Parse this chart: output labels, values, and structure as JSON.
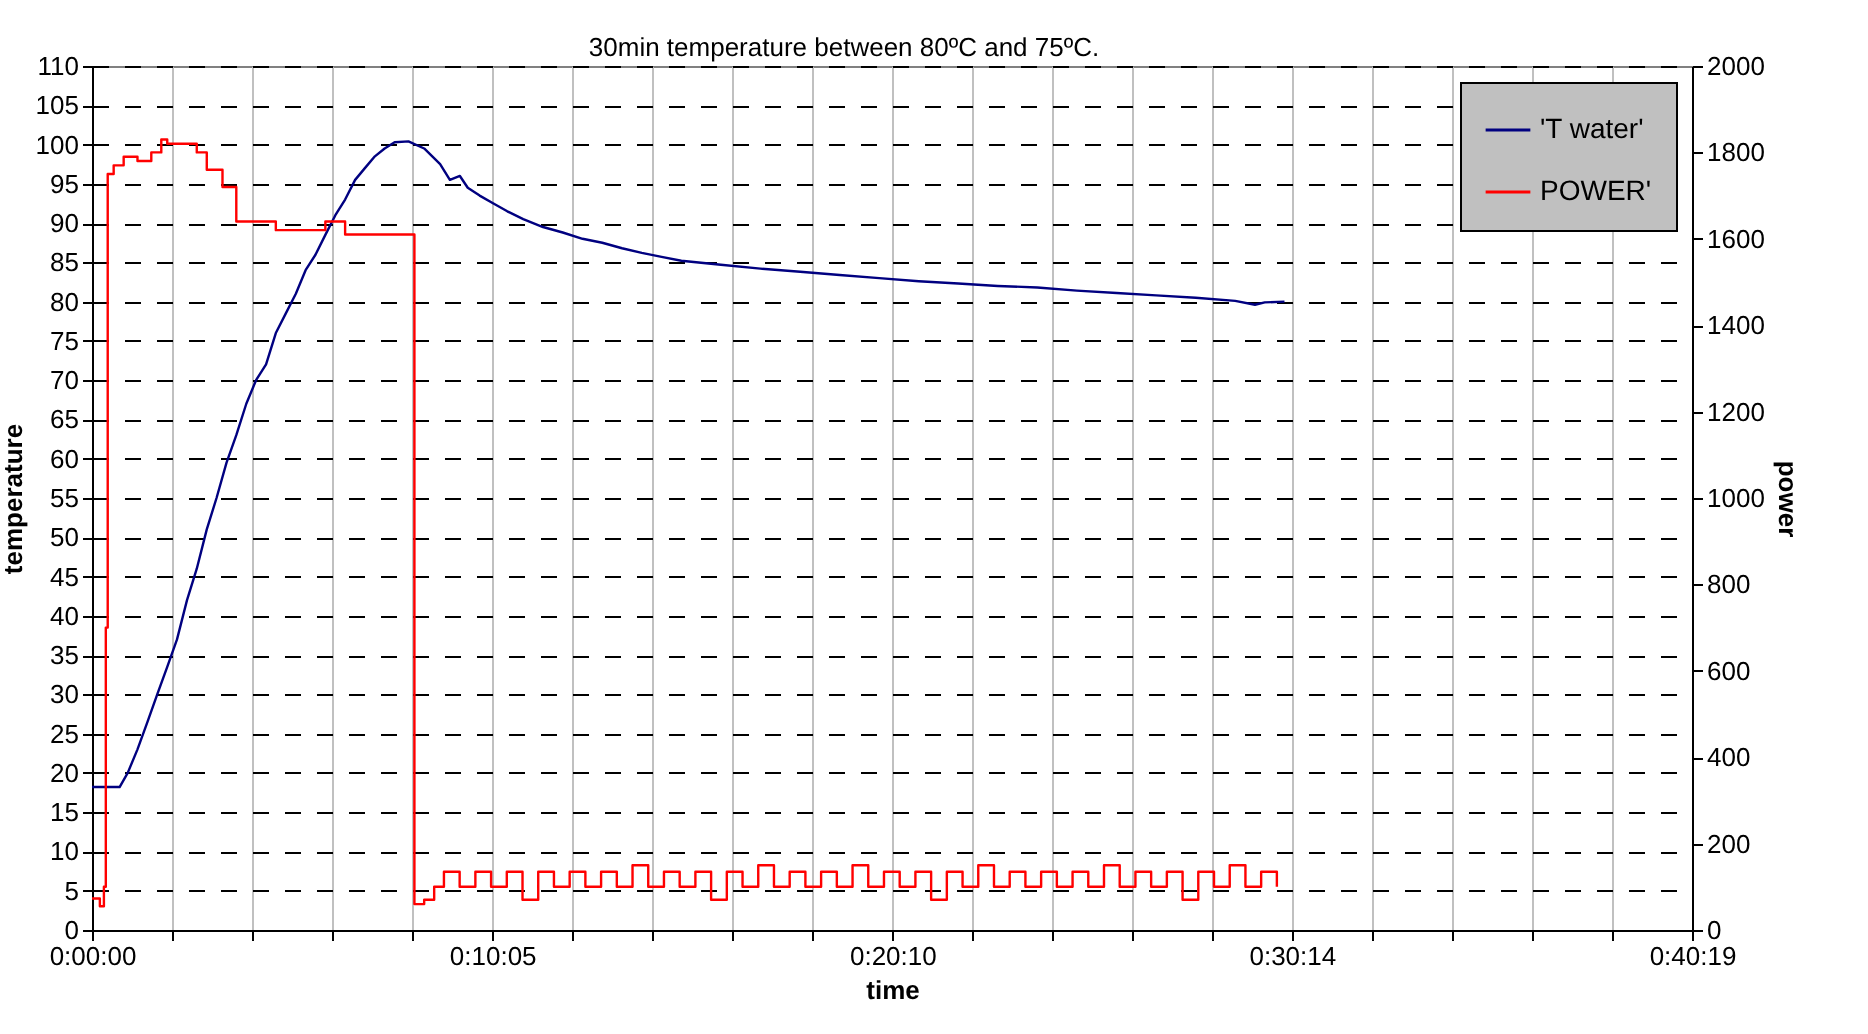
{
  "chart_data": {
    "type": "line",
    "xlabel": "time",
    "ylabel": "temperature",
    "y2label": "power",
    "annotations": [
      "30min temperature between 80ºC and 75ºC."
    ],
    "xlim": [
      0,
      0.67194
    ],
    "ylim": [
      0,
      110
    ],
    "y2lim": [
      0,
      2000
    ],
    "xticks": [
      {
        "value": 0,
        "label": "0:00:00"
      },
      {
        "value": 0.03361,
        "label": null
      },
      {
        "value": 0.06722,
        "label": null
      },
      {
        "value": 0.10083,
        "label": null
      },
      {
        "value": 0.13444,
        "label": null
      },
      {
        "value": 0.16806,
        "label": "0:10:05"
      },
      {
        "value": 0.20167,
        "label": null
      },
      {
        "value": 0.23528,
        "label": null
      },
      {
        "value": 0.26889,
        "label": null
      },
      {
        "value": 0.3025,
        "label": null
      },
      {
        "value": 0.33611,
        "label": "0:20:10"
      },
      {
        "value": 0.36967,
        "label": null
      },
      {
        "value": 0.40322,
        "label": null
      },
      {
        "value": 0.43678,
        "label": null
      },
      {
        "value": 0.47033,
        "label": null
      },
      {
        "value": 0.50389,
        "label": "0:30:14"
      },
      {
        "value": 0.5375,
        "label": null
      },
      {
        "value": 0.57111,
        "label": null
      },
      {
        "value": 0.60472,
        "label": null
      },
      {
        "value": 0.63833,
        "label": null
      },
      {
        "value": 0.67194,
        "label": "0:40:19"
      }
    ],
    "yticks": [
      0,
      5,
      10,
      15,
      20,
      25,
      30,
      35,
      40,
      45,
      50,
      55,
      60,
      65,
      70,
      75,
      80,
      85,
      90,
      95,
      100,
      105,
      110
    ],
    "y2ticks": [
      0,
      200,
      400,
      600,
      800,
      1000,
      1200,
      1400,
      1600,
      1800,
      2000
    ],
    "grid": true,
    "legend": "top right",
    "series": [
      {
        "name": "'T water'",
        "color": "#000080",
        "type": "line",
        "axis": "y",
        "x": [
          0,
          0.0116,
          0.015,
          0.0191,
          0.0233,
          0.0274,
          0.0316,
          0.0357,
          0.0399,
          0.044,
          0.0482,
          0.0523,
          0.0565,
          0.0606,
          0.0648,
          0.0689,
          0.0731,
          0.0772,
          0.0814,
          0.0856,
          0.0897,
          0.0939,
          0.098,
          0.1022,
          0.1063,
          0.1105,
          0.1146,
          0.1188,
          0.1229,
          0.1271,
          0.1329,
          0.1395,
          0.1462,
          0.1503,
          0.1545,
          0.1578,
          0.1628,
          0.1686,
          0.1744,
          0.1811,
          0.1894,
          0.1977,
          0.206,
          0.2143,
          0.2226,
          0.2309,
          0.2392,
          0.2475,
          0.2641,
          0.2807,
          0.2974,
          0.314,
          0.3306,
          0.3472,
          0.3638,
          0.3804,
          0.397,
          0.4136,
          0.4303,
          0.4469,
          0.4635,
          0.4801,
          0.4884,
          0.4925,
          0.5008
        ],
        "values": [
          18.2,
          18.2,
          20,
          23,
          26.5,
          30,
          33.5,
          37,
          42,
          46,
          51,
          55,
          59.5,
          63,
          67,
          70,
          72,
          76,
          78.5,
          81,
          84,
          86,
          88.5,
          91,
          93,
          95.5,
          97,
          98.5,
          99.5,
          100.3,
          100.4,
          99.5,
          97.5,
          95.5,
          96,
          94.5,
          93.5,
          92.5,
          91.5,
          90.5,
          89.5,
          88.8,
          88,
          87.5,
          86.8,
          86.2,
          85.7,
          85.2,
          84.7,
          84.2,
          83.8,
          83.4,
          83,
          82.6,
          82.3,
          82,
          81.8,
          81.4,
          81.1,
          80.8,
          80.5,
          80.1,
          79.6,
          79.9,
          80
        ]
      },
      {
        "name": "POWER'",
        "color": "#ff0000",
        "type": "step",
        "axis": "y2",
        "x": [
          0,
          0.0033,
          0.005,
          0.0058,
          0.0066,
          0.0091,
          0.0133,
          0.0191,
          0.0249,
          0.0291,
          0.0316,
          0.0399,
          0.044,
          0.0482,
          0.0548,
          0.0606,
          0.0731,
          0.0772,
          0.0897,
          0.098,
          0.1063,
          0.1146,
          0.1346,
          0.1354,
          0.1395,
          0.1437,
          0.1478,
          0.1544,
          0.161,
          0.1676,
          0.1742,
          0.1808,
          0.1874,
          0.194,
          0.2006,
          0.2072,
          0.2138,
          0.2204,
          0.227,
          0.2336,
          0.2402,
          0.2468,
          0.2534,
          0.26,
          0.2666,
          0.2732,
          0.2798,
          0.2864,
          0.293,
          0.2996,
          0.3062,
          0.3128,
          0.3194,
          0.326,
          0.3326,
          0.3392,
          0.3458,
          0.3524,
          0.359,
          0.3656,
          0.3722,
          0.3788,
          0.3854,
          0.392,
          0.3986,
          0.4052,
          0.4118,
          0.4184,
          0.425,
          0.4316,
          0.4382,
          0.4448,
          0.4514,
          0.458,
          0.4646,
          0.4712,
          0.4778,
          0.4844,
          0.491,
          0.4976
        ],
        "values": [
          73,
          55,
          100,
          700,
          1750,
          1770,
          1790,
          1780,
          1800,
          1830,
          1820,
          1820,
          1800,
          1760,
          1720,
          1640,
          1640,
          1620,
          1620,
          1640,
          1610,
          1610,
          1610,
          60,
          70,
          100,
          135,
          100,
          135,
          100,
          135,
          70,
          135,
          100,
          135,
          100,
          135,
          100,
          150,
          100,
          135,
          100,
          135,
          70,
          135,
          100,
          150,
          100,
          135,
          100,
          135,
          100,
          150,
          100,
          135,
          100,
          135,
          70,
          135,
          100,
          150,
          100,
          135,
          100,
          135,
          100,
          135,
          100,
          150,
          100,
          135,
          100,
          135,
          70,
          135,
          100,
          150,
          100,
          135,
          100
        ]
      }
    ]
  }
}
